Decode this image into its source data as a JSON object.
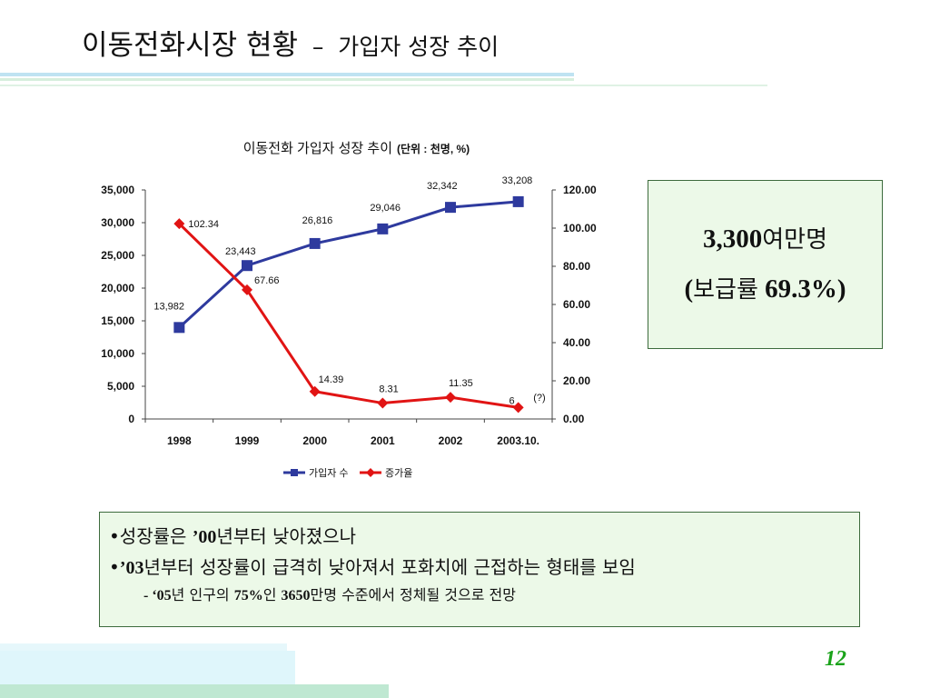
{
  "slide": {
    "title": "이동전화시장 현황",
    "title_dash": "–",
    "subtitle": "가입자 성장 추이",
    "page_number": "12"
  },
  "stat_box": {
    "line1_number": "3,300",
    "line1_unit": "여만명",
    "line2_open": "(",
    "line2_label": "보급률",
    "line2_value": "69.3%)"
  },
  "notes": {
    "line1_bullet": "•",
    "line1_a": "성장률은",
    "line1_b": "’00",
    "line1_c": "년부터 낮아졌으나",
    "line2_bullet": "•",
    "line2_a": "’03",
    "line2_b": "년부터 성장률이 급격히 낮아져서 포화치에 근접하는 형태를 보임",
    "line3_a": "- ‘05",
    "line3_b": "년 인구의",
    "line3_c": "75%",
    "line3_d": "인",
    "line3_e": "3650",
    "line3_f": "만명 수준에서 정체될 것으로 전망"
  },
  "chart_data": {
    "type": "line",
    "title": "이동전화 가입자 성장 추이",
    "title_unit": "(단위 :  천명, %)",
    "categories": [
      "1998",
      "1999",
      "2000",
      "2001",
      "2002",
      "2003.10."
    ],
    "series": [
      {
        "name": "가입자 수",
        "axis": "left",
        "color": "#2e3a9e",
        "marker": "square",
        "values": [
          13982,
          23443,
          26816,
          29046,
          32342,
          33208
        ],
        "labels": [
          "13,982",
          "23,443",
          "26,816",
          "29,046",
          "32,342",
          "33,208"
        ]
      },
      {
        "name": "증가율",
        "axis": "right",
        "color": "#e11414",
        "marker": "diamond",
        "values": [
          102.34,
          67.66,
          14.39,
          8.31,
          11.35,
          6
        ],
        "labels": [
          "102.34",
          "67.66",
          "14.39",
          "8.31",
          "11.35",
          "6"
        ]
      }
    ],
    "annotation": "(?)",
    "y_left": {
      "lim": [
        0,
        35000
      ],
      "ticks": [
        0,
        5000,
        10000,
        15000,
        20000,
        25000,
        30000,
        35000
      ],
      "tick_labels": [
        "0",
        "5,000",
        "10,000",
        "15,000",
        "20,000",
        "25,000",
        "30,000",
        "35,000"
      ]
    },
    "y_right": {
      "lim": [
        0,
        120
      ],
      "ticks": [
        0,
        20,
        40,
        60,
        80,
        100,
        120
      ],
      "tick_labels": [
        "0.00",
        "20.00",
        "40.00",
        "60.00",
        "80.00",
        "100.00",
        "120.00"
      ]
    },
    "grid": false,
    "legend": "bottom"
  }
}
